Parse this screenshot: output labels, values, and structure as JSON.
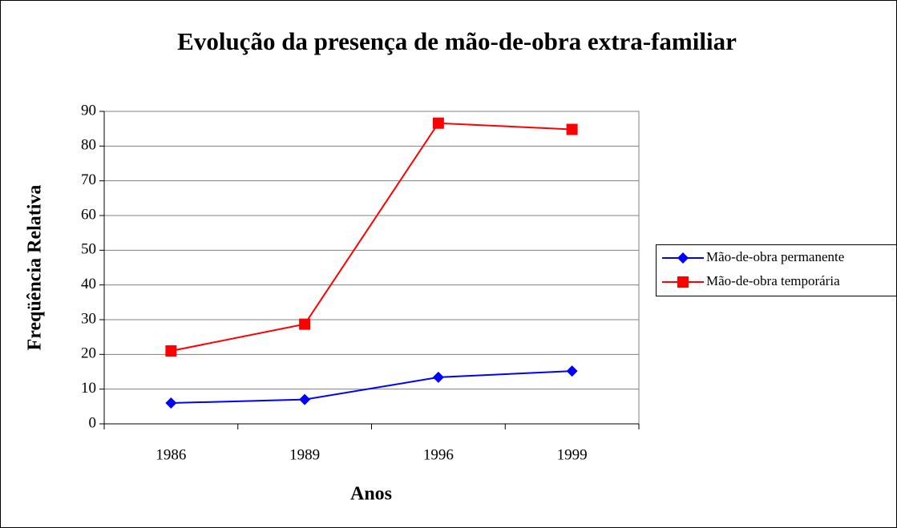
{
  "chart_data": {
    "type": "line",
    "title": "Evolução da presença de mão-de-obra extra-familiar",
    "x_label": "Anos",
    "y_label": "Freqüência Relativa",
    "categories": [
      "1986",
      "1989",
      "1996",
      "1999"
    ],
    "series": [
      {
        "name": "Mão-de-obra permanente",
        "color": "#0000ff",
        "marker": "diamond",
        "values": [
          6,
          7,
          13.4,
          15.2
        ]
      },
      {
        "name": "Mão-de-obra temporária",
        "color": "#ff0000",
        "marker": "square",
        "values": [
          21,
          28.7,
          86.6,
          84.8
        ]
      }
    ],
    "ylim": [
      0,
      90
    ],
    "yticks": [
      0,
      10,
      20,
      30,
      40,
      50,
      60,
      70,
      80,
      90
    ],
    "grid": true,
    "legend": "right"
  }
}
